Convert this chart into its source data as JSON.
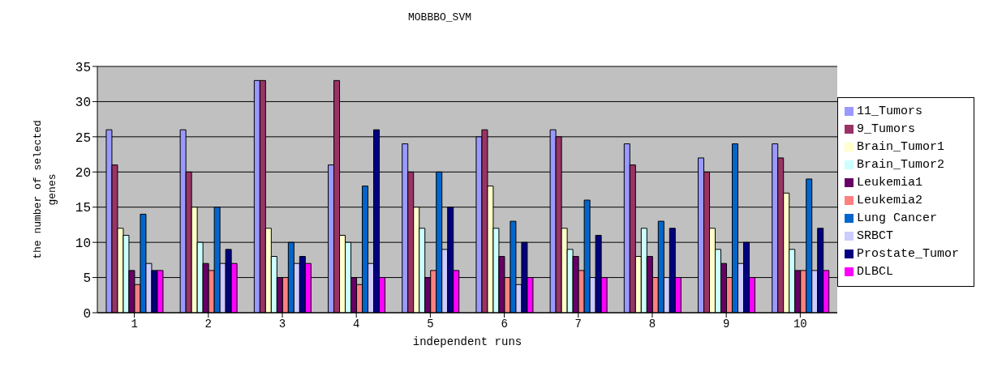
{
  "chart_data": {
    "type": "bar",
    "title": "MOBBBO_SVM",
    "xlabel": "independent runs",
    "ylabel": "the number of selected genes",
    "categories": [
      "1",
      "2",
      "3",
      "4",
      "5",
      "6",
      "7",
      "8",
      "9",
      "10"
    ],
    "series": [
      {
        "name": "11_Tumors",
        "color": "#9999ff",
        "values": [
          26,
          26,
          33,
          21,
          24,
          25,
          26,
          24,
          22,
          24
        ]
      },
      {
        "name": "9_Tumors",
        "color": "#993366",
        "values": [
          21,
          20,
          33,
          33,
          20,
          26,
          25,
          21,
          20,
          22
        ]
      },
      {
        "name": "Brain_Tumor1",
        "color": "#ffffcc",
        "values": [
          12,
          15,
          12,
          11,
          15,
          18,
          12,
          8,
          12,
          17
        ]
      },
      {
        "name": "Brain_Tumor2",
        "color": "#ccffff",
        "values": [
          11,
          10,
          8,
          10,
          12,
          12,
          9,
          12,
          9,
          9
        ]
      },
      {
        "name": "Leukemia1",
        "color": "#660066",
        "values": [
          6,
          7,
          5,
          5,
          5,
          8,
          8,
          8,
          7,
          6
        ]
      },
      {
        "name": "Leukemia2",
        "color": "#ff8080",
        "values": [
          4,
          6,
          5,
          4,
          6,
          5,
          6,
          5,
          5,
          6
        ]
      },
      {
        "name": "Lung Cancer",
        "color": "#0066cc",
        "values": [
          14,
          15,
          10,
          18,
          20,
          13,
          16,
          13,
          24,
          19
        ]
      },
      {
        "name": "SRBCT",
        "color": "#ccccff",
        "values": [
          7,
          7,
          7,
          7,
          9,
          4,
          5,
          5,
          7,
          6
        ]
      },
      {
        "name": "Prostate_Tumor",
        "color": "#000080",
        "values": [
          6,
          9,
          8,
          26,
          15,
          10,
          11,
          12,
          10,
          12
        ]
      },
      {
        "name": "DLBCL",
        "color": "#ff00ff",
        "values": [
          6,
          7,
          7,
          5,
          6,
          5,
          5,
          5,
          5,
          6
        ]
      }
    ],
    "ylim": [
      0,
      35
    ],
    "yticks": [
      0,
      5,
      10,
      15,
      20,
      25,
      30,
      35
    ],
    "grid": "y",
    "legend": "right"
  }
}
